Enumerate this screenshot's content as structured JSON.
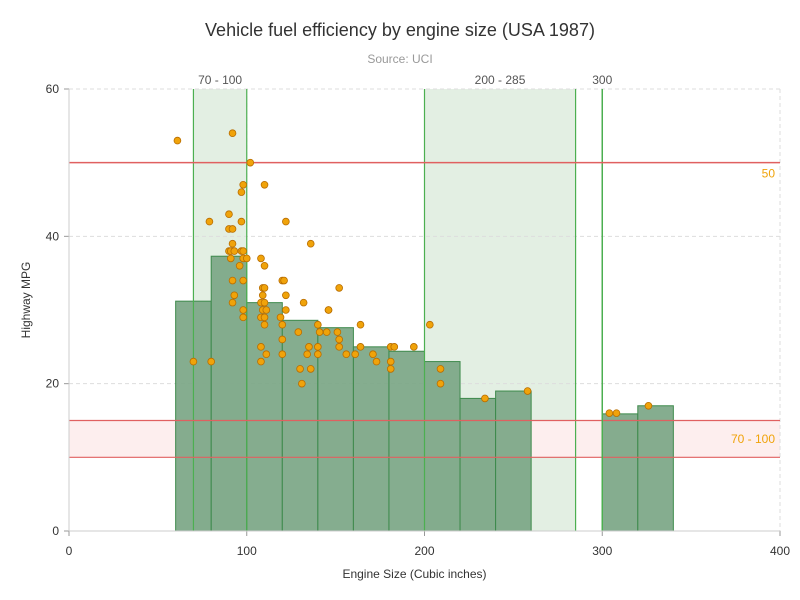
{
  "chart_data": {
    "type": "bar",
    "title": "Vehicle fuel efficiency by engine size (USA 1987)",
    "subtitle": "Source: UCI",
    "xlabel": "Engine Size (Cubic inches)",
    "ylabel": "Highway MPG",
    "xlim": [
      0,
      400
    ],
    "ylim": [
      0,
      60
    ],
    "x_ticks": [
      0,
      100,
      200,
      300,
      400
    ],
    "y_ticks": [
      0,
      20,
      40,
      60
    ],
    "grid": true,
    "histogram": [
      {
        "from": 60,
        "to": 80,
        "value": 31.2
      },
      {
        "from": 80,
        "to": 100,
        "value": 37.3
      },
      {
        "from": 100,
        "to": 120,
        "value": 31.0
      },
      {
        "from": 120,
        "to": 140,
        "value": 28.6
      },
      {
        "from": 140,
        "to": 160,
        "value": 27.6
      },
      {
        "from": 160,
        "to": 180,
        "value": 25.0
      },
      {
        "from": 180,
        "to": 200,
        "value": 24.4
      },
      {
        "from": 200,
        "to": 220,
        "value": 23.0
      },
      {
        "from": 220,
        "to": 240,
        "value": 18.0
      },
      {
        "from": 240,
        "to": 260,
        "value": 19.0
      },
      {
        "from": 300,
        "to": 320,
        "value": 15.9
      },
      {
        "from": 320,
        "to": 340,
        "value": 17.0
      }
    ],
    "scatter": [
      [
        61,
        53
      ],
      [
        70,
        23
      ],
      [
        79,
        42
      ],
      [
        80,
        23
      ],
      [
        90,
        38
      ],
      [
        90,
        43
      ],
      [
        90,
        41
      ],
      [
        91,
        38
      ],
      [
        92,
        54
      ],
      [
        92,
        41
      ],
      [
        92,
        39
      ],
      [
        91,
        37
      ],
      [
        92,
        34
      ],
      [
        92,
        31
      ],
      [
        93,
        32
      ],
      [
        93,
        38
      ],
      [
        96,
        36
      ],
      [
        97,
        38
      ],
      [
        97,
        42
      ],
      [
        97,
        46
      ],
      [
        98,
        47
      ],
      [
        98,
        37
      ],
      [
        98,
        34
      ],
      [
        98,
        30
      ],
      [
        98,
        29
      ],
      [
        98,
        38
      ],
      [
        100,
        37
      ],
      [
        102,
        50
      ],
      [
        108,
        37
      ],
      [
        108,
        31
      ],
      [
        108,
        29
      ],
      [
        108,
        25
      ],
      [
        108,
        23
      ],
      [
        109,
        33
      ],
      [
        109,
        32
      ],
      [
        109,
        30
      ],
      [
        110,
        47
      ],
      [
        110,
        36
      ],
      [
        110,
        33
      ],
      [
        110,
        31
      ],
      [
        110,
        29
      ],
      [
        110,
        28
      ],
      [
        111,
        30
      ],
      [
        111,
        24
      ],
      [
        119,
        29
      ],
      [
        120,
        34
      ],
      [
        120,
        28
      ],
      [
        120,
        26
      ],
      [
        120,
        24
      ],
      [
        121,
        34
      ],
      [
        122,
        42
      ],
      [
        122,
        32
      ],
      [
        122,
        30
      ],
      [
        129,
        27
      ],
      [
        130,
        22
      ],
      [
        131,
        20
      ],
      [
        132,
        31
      ],
      [
        134,
        24
      ],
      [
        135,
        25
      ],
      [
        136,
        39
      ],
      [
        136,
        22
      ],
      [
        140,
        28
      ],
      [
        141,
        27
      ],
      [
        140,
        25
      ],
      [
        140,
        24
      ],
      [
        145,
        27
      ],
      [
        146,
        30
      ],
      [
        146,
        30
      ],
      [
        151,
        27
      ],
      [
        152,
        33
      ],
      [
        152,
        26
      ],
      [
        152,
        25
      ],
      [
        156,
        24
      ],
      [
        161,
        24
      ],
      [
        164,
        28
      ],
      [
        164,
        25
      ],
      [
        171,
        24
      ],
      [
        173,
        23
      ],
      [
        181,
        25
      ],
      [
        181,
        23
      ],
      [
        181,
        22
      ],
      [
        183,
        25
      ],
      [
        194,
        25
      ],
      [
        203,
        28
      ],
      [
        209,
        22
      ],
      [
        209,
        20
      ],
      [
        234,
        18
      ],
      [
        258,
        19
      ],
      [
        304,
        16
      ],
      [
        308,
        16
      ],
      [
        326,
        17
      ]
    ],
    "plot_bands": [
      {
        "axis": "x",
        "from": 70,
        "to": 100,
        "label": "70 - 100"
      },
      {
        "axis": "x",
        "from": 200,
        "to": 285,
        "label": "200 - 285"
      },
      {
        "axis": "y",
        "from": 10,
        "to": 15,
        "label": "70 - 100"
      }
    ],
    "plot_lines": [
      {
        "axis": "x",
        "value": 300,
        "label": "300"
      },
      {
        "axis": "y",
        "value": 50,
        "label": "50"
      }
    ],
    "colors": {
      "bar_fill": "#7ba685",
      "bar_stroke": "#3e8a4c",
      "point_fill": "#f0a30a",
      "point_stroke": "#b86d00",
      "band_x_fill": "#e3efe3",
      "band_x_stroke": "#4caf50",
      "band_y_fill": "#fdeeee",
      "band_y_stroke": "#e06060",
      "plot_line_label": "#f0a30a",
      "grid": "#dddddd",
      "axis": "#999999"
    }
  }
}
